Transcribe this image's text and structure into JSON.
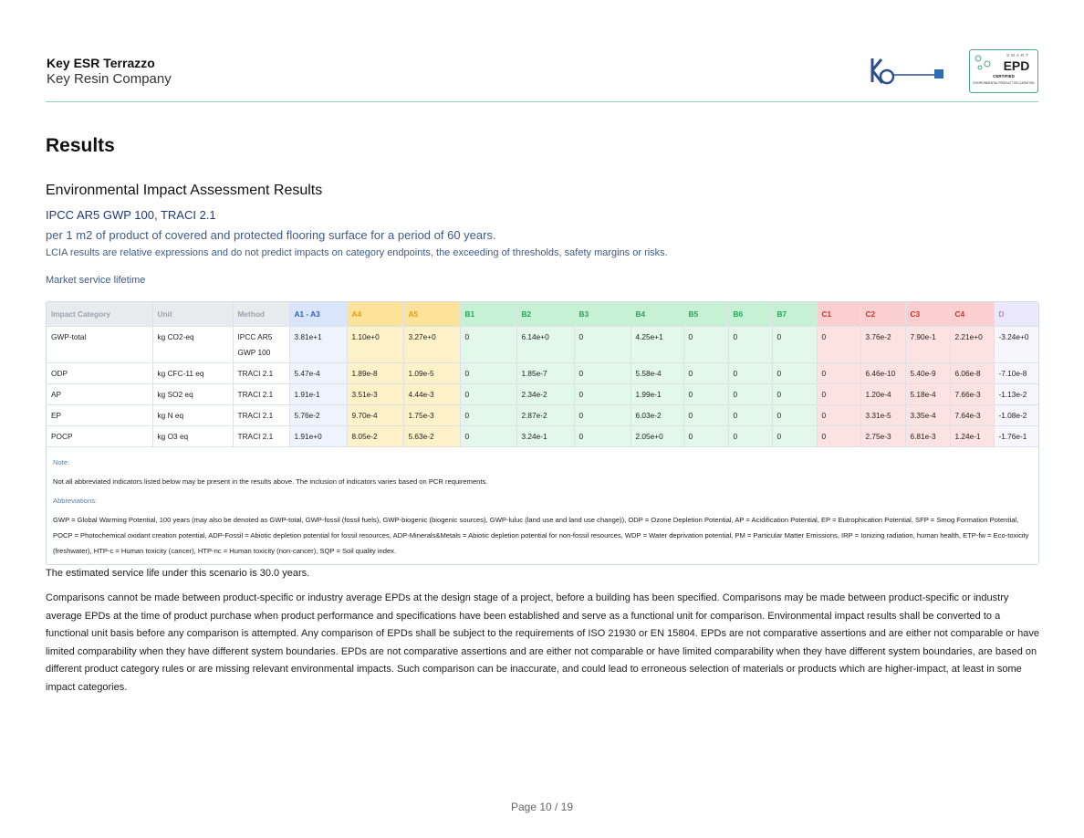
{
  "header": {
    "title": "Key ESR Terrazzo",
    "company": "Key Resin Company",
    "badge": {
      "top": "SMART",
      "main": "EPD",
      "certified": "CERTIFIED",
      "caption": "ENVIRONMENTAL PRODUCT DECLARATION"
    }
  },
  "section": {
    "heading": "Results",
    "subheading": "Environmental Impact Assessment Results",
    "methods": "IPCC AR5 GWP 100, TRACI 2.1",
    "unit_line": "per 1 m2 of product of covered and protected flooring surface for a period of 60 years.",
    "lcia_note": "LCIA results are relative expressions and do not predict impacts on category endpoints, the exceeding of thresholds, safety margins or risks.",
    "scenario": "Market service lifetime"
  },
  "table": {
    "headers": [
      "Impact Category",
      "Unit",
      "Method",
      "A1 - A3",
      "A4",
      "A5",
      "B1",
      "B2",
      "B3",
      "B4",
      "B5",
      "B6",
      "B7",
      "C1",
      "C2",
      "C3",
      "C4",
      "D"
    ],
    "rows": [
      [
        "GWP-total",
        "kg CO2-eq",
        "IPCC AR5 GWP 100",
        "3.81e+1",
        "1.10e+0",
        "3.27e+0",
        "0",
        "6.14e+0",
        "0",
        "4.25e+1",
        "0",
        "0",
        "0",
        "0",
        "3.76e-2",
        "7.90e-1",
        "2.21e+0",
        "-3.24e+0"
      ],
      [
        "ODP",
        "kg CFC-11 eq",
        "TRACI 2.1",
        "5.47e-4",
        "1.89e-8",
        "1.09e-5",
        "0",
        "1.85e-7",
        "0",
        "5.58e-4",
        "0",
        "0",
        "0",
        "0",
        "6.46e-10",
        "5.40e-9",
        "6.06e-8",
        "-7.10e-8"
      ],
      [
        "AP",
        "kg SO2 eq",
        "TRACI 2.1",
        "1.91e-1",
        "3.51e-3",
        "4.44e-3",
        "0",
        "2.34e-2",
        "0",
        "1.99e-1",
        "0",
        "0",
        "0",
        "0",
        "1.20e-4",
        "5.18e-4",
        "7.66e-3",
        "-1.13e-2"
      ],
      [
        "EP",
        "kg N eq",
        "TRACI 2.1",
        "5.76e-2",
        "9.70e-4",
        "1.75e-3",
        "0",
        "2.87e-2",
        "0",
        "6.03e-2",
        "0",
        "0",
        "0",
        "0",
        "3.31e-5",
        "3.35e-4",
        "7.64e-3",
        "-1.08e-2"
      ],
      [
        "POCP",
        "kg O3 eq",
        "TRACI 2.1",
        "1.91e+0",
        "8.05e-2",
        "5.63e-2",
        "0",
        "3.24e-1",
        "0",
        "2.05e+0",
        "0",
        "0",
        "0",
        "0",
        "2.75e-3",
        "6.81e-3",
        "1.24e-1",
        "-1.76e-1"
      ]
    ],
    "note_label": "Note:",
    "note": "Not all abbreviated indicators listed below may be present in the results above. The inclusion of indicators varies based on PCR requirements.",
    "abbr_label": "Abbreviations:",
    "abbr": "GWP = Global Warming Potential, 100 years (may also be denoted as GWP-total, GWP-fossil (fossil fuels), GWP-biogenic (biogenic sources), GWP-luluc (land use and land use change)), ODP = Ozone Depletion Potential, AP = Acidification Potential, EP = Eutrophication Potential, SFP = Smog Formation Potential, POCP = Photochemical oxidant creation potential, ADP-Fossil = Abiotic depletion potential for fossil resources, ADP-Minerals&Metals = Abiotic depletion potential for non-fossil resources, WDP = Water deprivation potential, PM = Particular Matter Emissions, IRP = Ionizing radiation, human health, ETP-fw = Eco-toxicity (freshwater), HTP-c = Human toxicity (cancer), HTP-nc = Human toxicity (non-cancer), SQP = Soil quality index."
  },
  "body": {
    "service_life": "The estimated service life under this scenario is 30.0 years.",
    "comparisons": "Comparisons cannot be made between product-specific or industry average EPDs at the design stage of a project, before a building has been specified. Comparisons may be made between product-specific or industry average EPDs at the time of product purchase when product performance and specifications have been established and serve as a functional unit for comparison. Environmental impact results shall be converted to a functional unit basis before any comparison is attempted. Any comparison of EPDs shall be subject to the requirements of ISO 21930 or EN 15804. EPDs are not comparative assertions and are either not comparable or have limited comparability when they have different system boundaries. EPDs are not comparative assertions and are either not comparable or have limited comparability when they have different system boundaries, are based on different product category rules or are missing relevant environmental impacts. Such comparison can be inaccurate, and could lead to erroneous selection of materials or products which are higher-impact, at least in some impact categories."
  },
  "footer": {
    "page": "Page 10 / 19"
  }
}
